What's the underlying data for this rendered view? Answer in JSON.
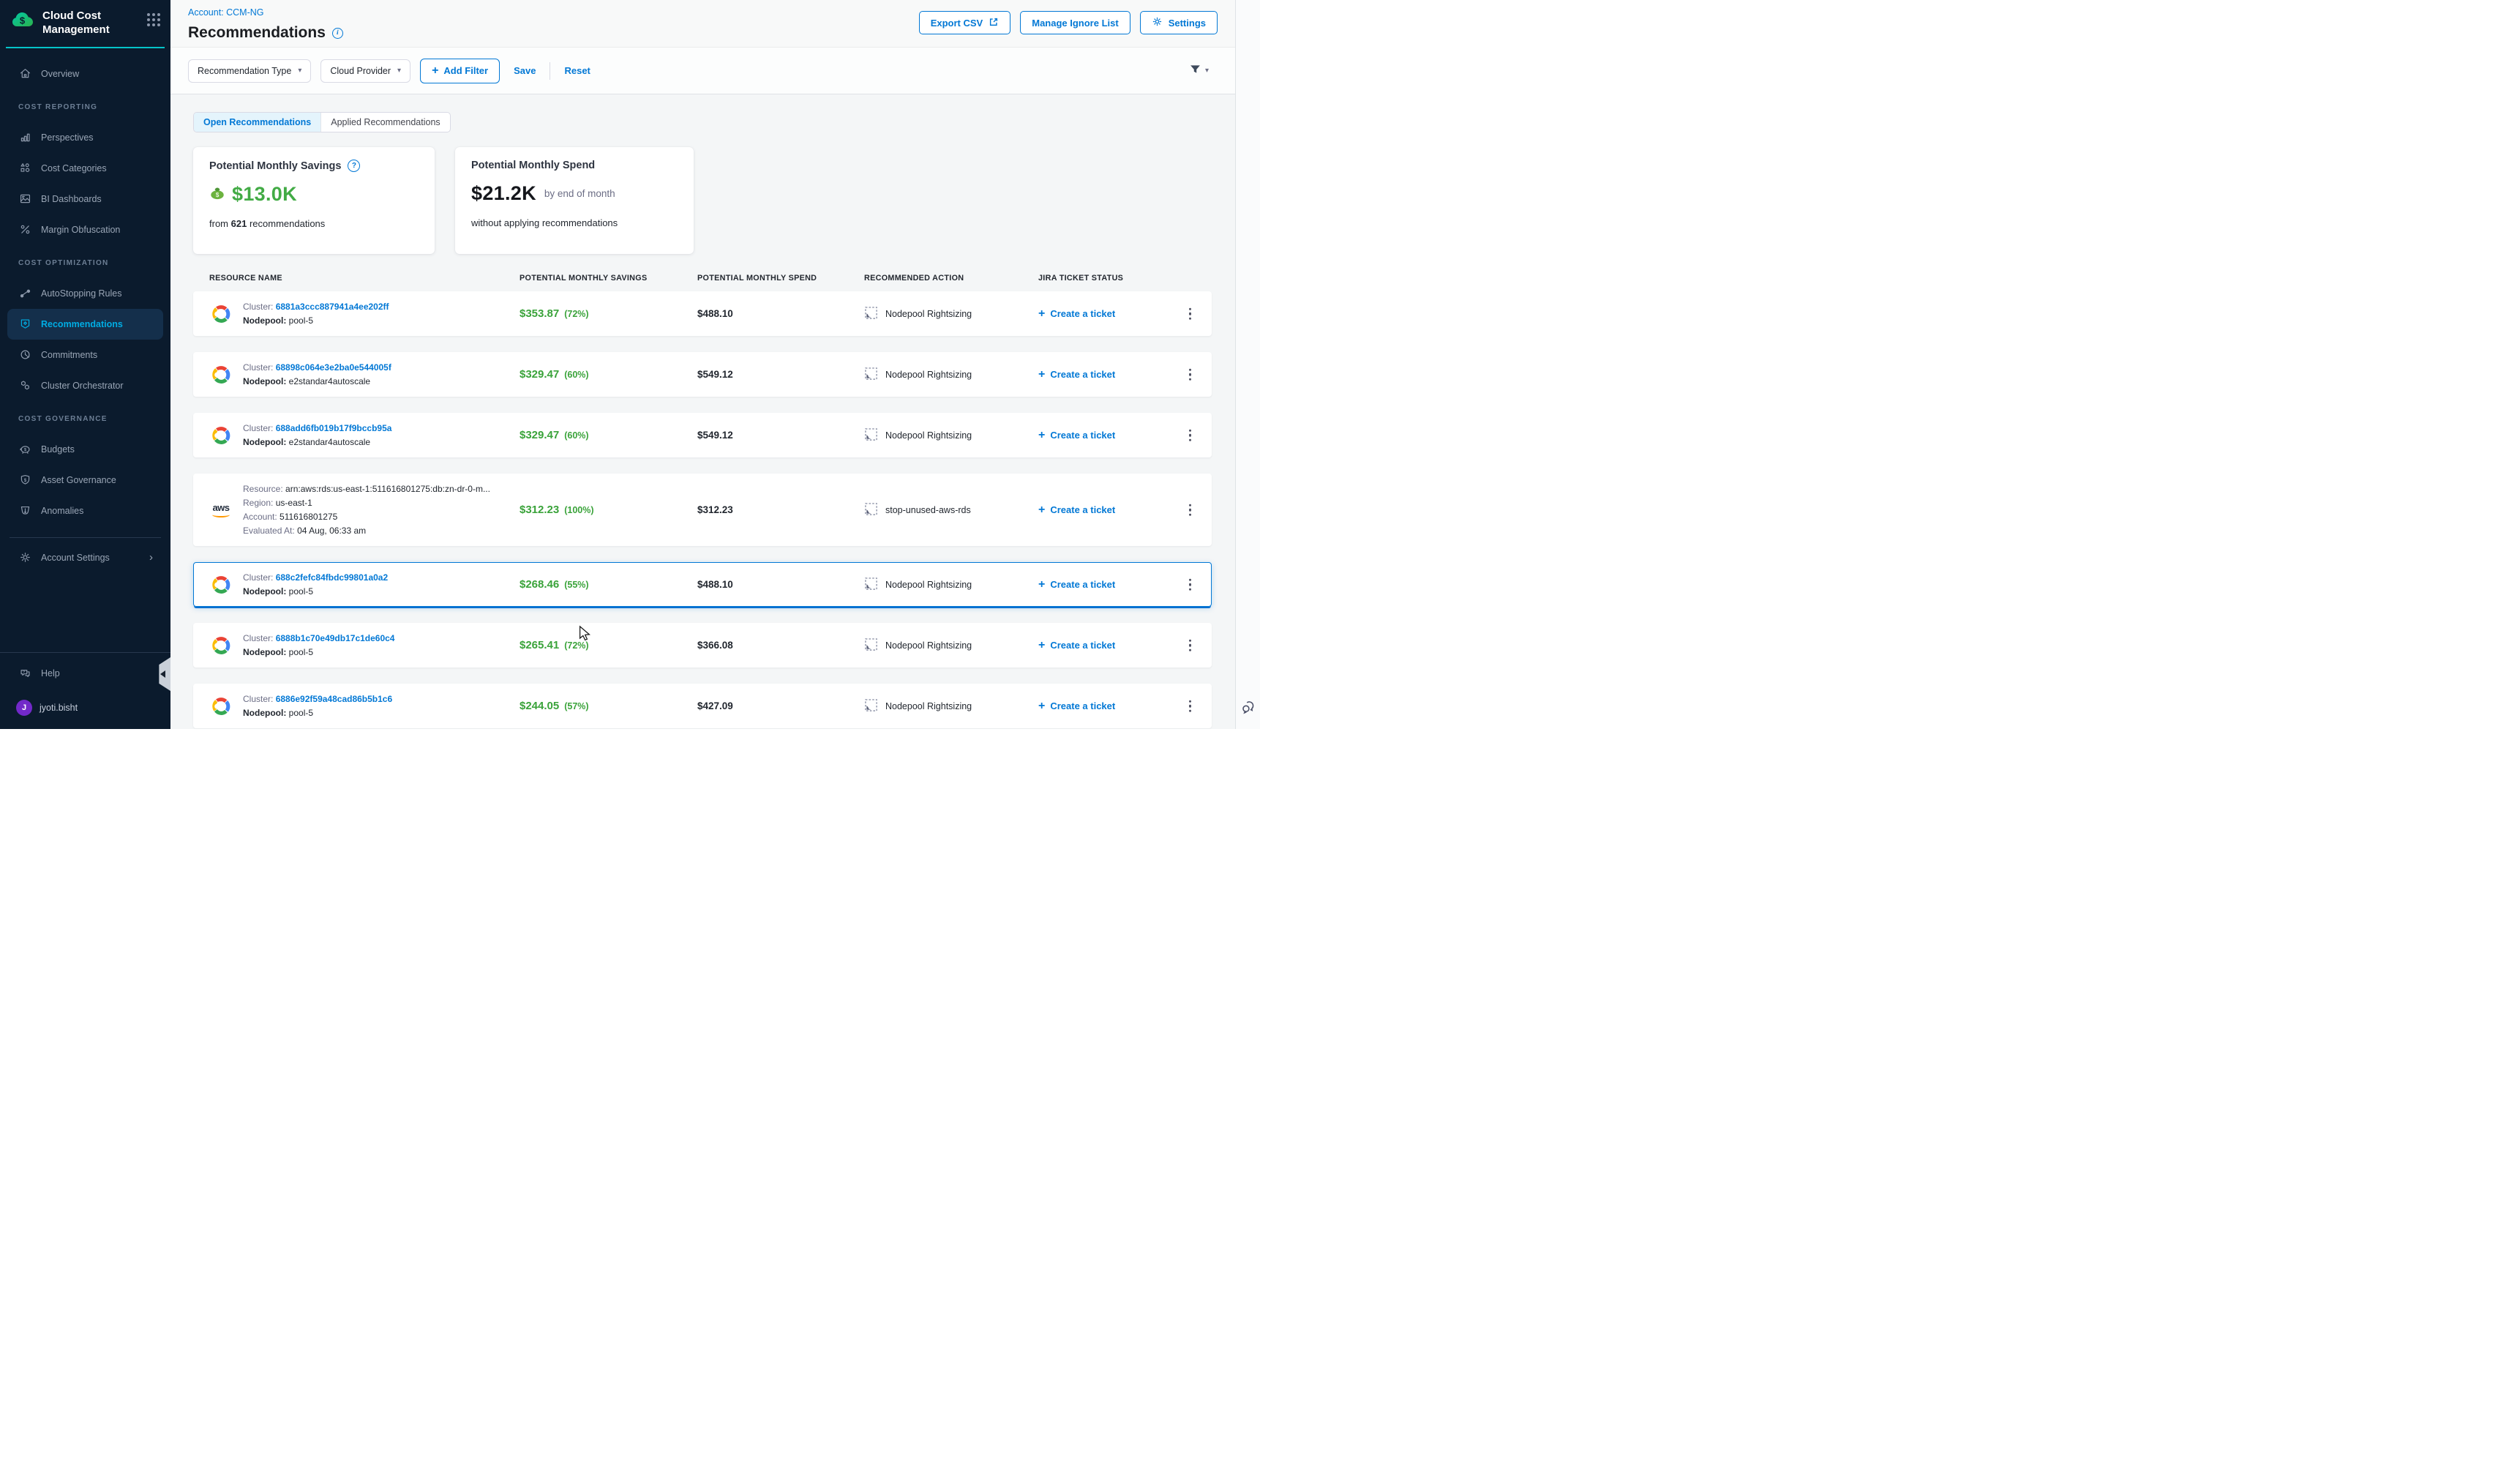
{
  "app": {
    "brand": {
      "title_line1": "Cloud Cost",
      "title_line2": "Management"
    }
  },
  "glyphs": {
    "plus": "+",
    "chevron_down": "▾",
    "chevron_right": "›",
    "info": "i",
    "question": "?"
  },
  "sidebar": {
    "groups": [
      {
        "heading": "",
        "items": [
          {
            "label": "Overview",
            "icon": "home-icon",
            "active": false
          }
        ]
      },
      {
        "heading": "COST REPORTING",
        "items": [
          {
            "label": "Perspectives",
            "icon": "bar-chart-icon",
            "active": false
          },
          {
            "label": "Cost Categories",
            "icon": "categories-icon",
            "active": false
          },
          {
            "label": "BI Dashboards",
            "icon": "dashboard-icon",
            "active": false
          },
          {
            "label": "Margin Obfuscation",
            "icon": "percent-icon",
            "active": false
          }
        ]
      },
      {
        "heading": "COST OPTIMIZATION",
        "items": [
          {
            "label": "AutoStopping Rules",
            "icon": "autostopping-icon",
            "active": false
          },
          {
            "label": "Recommendations",
            "icon": "recommendations-icon",
            "active": true
          },
          {
            "label": "Commitments",
            "icon": "commitments-icon",
            "active": false
          },
          {
            "label": "Cluster Orchestrator",
            "icon": "cluster-icon",
            "active": false
          }
        ]
      },
      {
        "heading": "COST GOVERNANCE",
        "items": [
          {
            "label": "Budgets",
            "icon": "budgets-icon",
            "active": false
          },
          {
            "label": "Asset Governance",
            "icon": "shield-dollar-icon",
            "active": false
          },
          {
            "label": "Anomalies",
            "icon": "anomaly-icon",
            "active": false
          }
        ]
      }
    ],
    "account_settings": {
      "label": "Account Settings"
    },
    "help": {
      "label": "Help"
    },
    "user": {
      "initial": "J",
      "name": "jyoti.bisht"
    }
  },
  "header": {
    "account_label": "Account: CCM-NG",
    "title": "Recommendations",
    "buttons": {
      "export": "Export CSV",
      "manage_ignore": "Manage Ignore List",
      "settings": "Settings"
    }
  },
  "filter_bar": {
    "dropdowns": [
      {
        "label": "Recommendation Type"
      },
      {
        "label": "Cloud Provider"
      }
    ],
    "add_filter_label": "Add Filter",
    "save": "Save",
    "reset": "Reset"
  },
  "tabs": {
    "open": "Open Recommendations",
    "applied": "Applied Recommendations"
  },
  "summary_cards": {
    "savings": {
      "title": "Potential Monthly Savings",
      "amount": "$13.0K",
      "sub_prefix": "from",
      "sub_count": "621",
      "sub_suffix": "recommendations"
    },
    "spend": {
      "title": "Potential Monthly Spend",
      "amount": "$21.2K",
      "amount_suffix": "by end of month",
      "subtitle": "without applying recommendations"
    }
  },
  "table": {
    "headers": [
      "RESOURCE NAME",
      "POTENTIAL MONTHLY SAVINGS",
      "POTENTIAL MONTHLY SPEND",
      "RECOMMENDED ACTION",
      "JIRA TICKET STATUS"
    ],
    "create_ticket_label": "Create a ticket",
    "rows": [
      {
        "provider": "gcp",
        "selected": false,
        "lines": [
          {
            "label": "Cluster:",
            "value": "6881a3ccc887941a4ee202ff",
            "link": true
          },
          {
            "label": "Nodepool:",
            "value": "pool-5",
            "bold_label": true
          }
        ],
        "savings": "$353.87",
        "savings_pct": "(72%)",
        "spend": "$488.10",
        "action": "Nodepool Rightsizing"
      },
      {
        "provider": "gcp",
        "selected": false,
        "lines": [
          {
            "label": "Cluster:",
            "value": "68898c064e3e2ba0e544005f",
            "link": true
          },
          {
            "label": "Nodepool:",
            "value": "e2standar4autoscale",
            "bold_label": true
          }
        ],
        "savings": "$329.47",
        "savings_pct": "(60%)",
        "spend": "$549.12",
        "action": "Nodepool Rightsizing"
      },
      {
        "provider": "gcp",
        "selected": false,
        "lines": [
          {
            "label": "Cluster:",
            "value": "688add6fb019b17f9bccb95a",
            "link": true
          },
          {
            "label": "Nodepool:",
            "value": "e2standar4autoscale",
            "bold_label": true
          }
        ],
        "savings": "$329.47",
        "savings_pct": "(60%)",
        "spend": "$549.12",
        "action": "Nodepool Rightsizing"
      },
      {
        "provider": "aws",
        "selected": false,
        "lines": [
          {
            "label": "Resource:",
            "value": "arn:aws:rds:us-east-1:511616801275:db:zn-dr-0-m...",
            "link": false
          },
          {
            "label": "Region:",
            "value": "us-east-1",
            "link": false
          },
          {
            "label": "Account:",
            "value": "511616801275",
            "link": false
          },
          {
            "label": "Evaluated At:",
            "value": "04 Aug, 06:33 am",
            "link": false
          }
        ],
        "savings": "$312.23",
        "savings_pct": "(100%)",
        "spend": "$312.23",
        "action": "stop-unused-aws-rds"
      },
      {
        "provider": "gcp",
        "selected": true,
        "lines": [
          {
            "label": "Cluster:",
            "value": "688c2fefc84fbdc99801a0a2",
            "link": true
          },
          {
            "label": "Nodepool:",
            "value": "pool-5",
            "bold_label": true
          }
        ],
        "savings": "$268.46",
        "savings_pct": "(55%)",
        "spend": "$488.10",
        "action": "Nodepool Rightsizing"
      },
      {
        "provider": "gcp",
        "selected": false,
        "lines": [
          {
            "label": "Cluster:",
            "value": "6888b1c70e49db17c1de60c4",
            "link": true
          },
          {
            "label": "Nodepool:",
            "value": "pool-5",
            "bold_label": true
          }
        ],
        "savings": "$265.41",
        "savings_pct": "(72%)",
        "spend": "$366.08",
        "action": "Nodepool Rightsizing"
      },
      {
        "provider": "gcp",
        "selected": false,
        "lines": [
          {
            "label": "Cluster:",
            "value": "6886e92f59a48cad86b5b1c6",
            "link": true
          },
          {
            "label": "Nodepool:",
            "value": "pool-5",
            "bold_label": true
          }
        ],
        "savings": "$244.05",
        "savings_pct": "(57%)",
        "spend": "$427.09",
        "action": "Nodepool Rightsizing"
      }
    ]
  }
}
